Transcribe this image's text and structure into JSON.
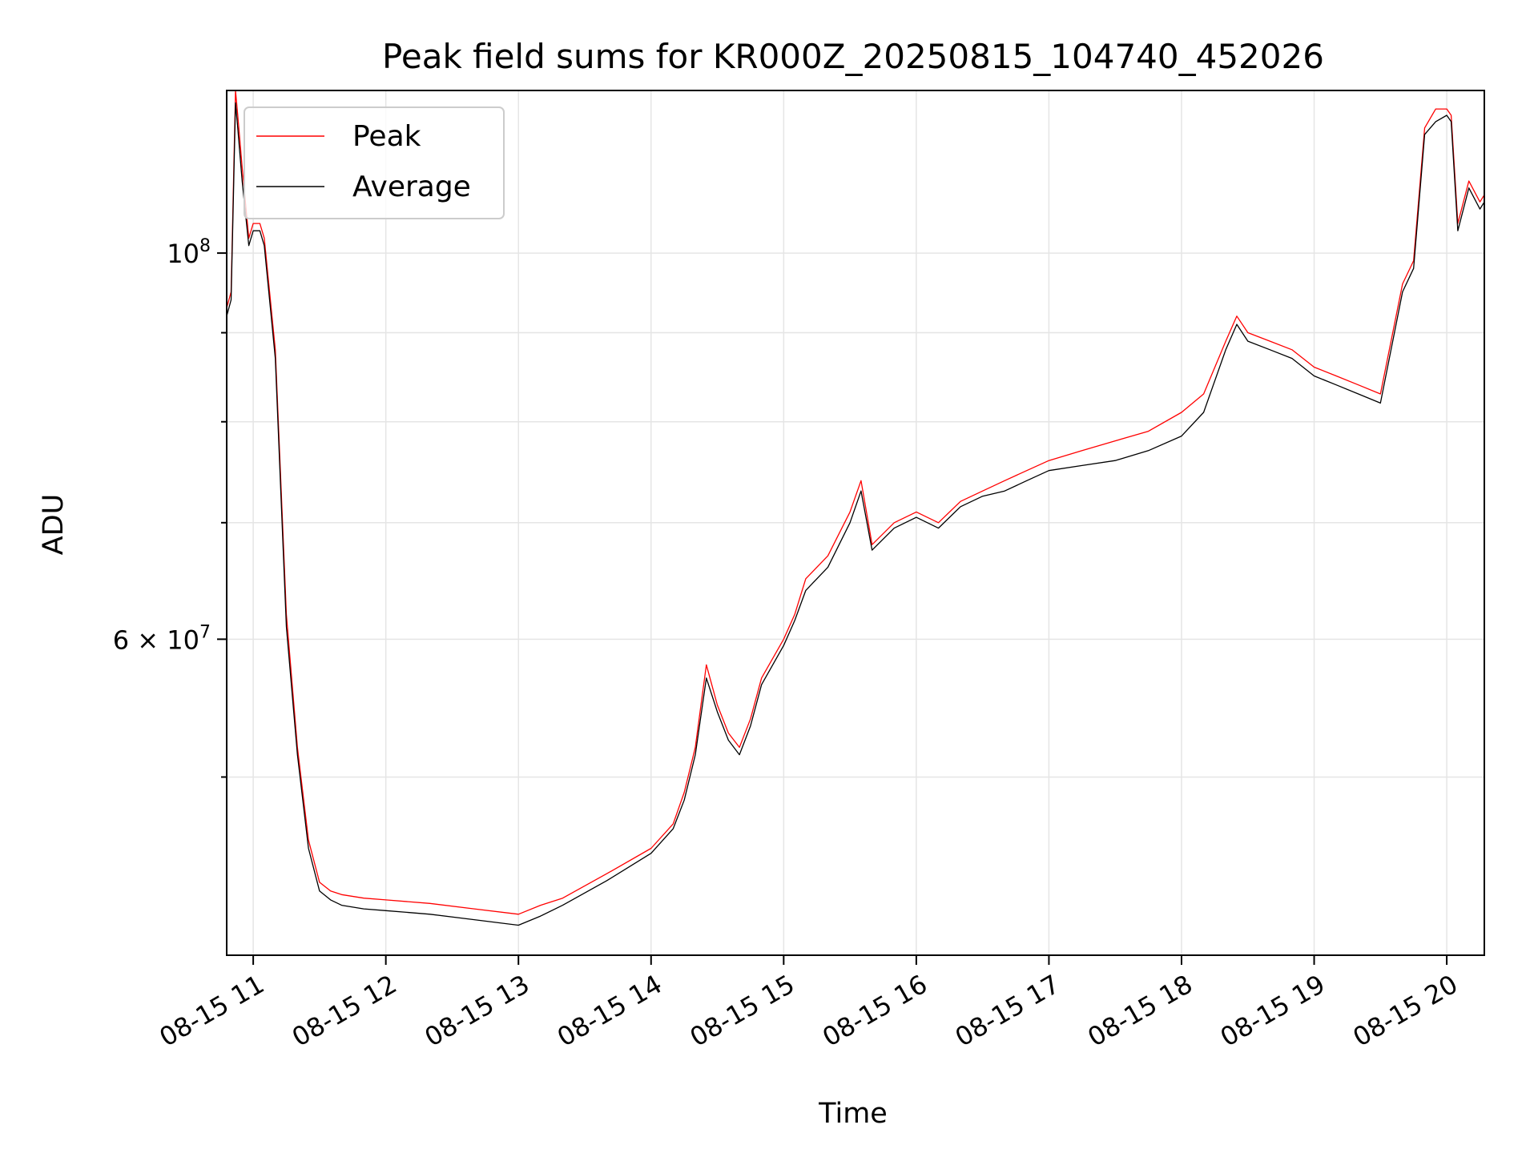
{
  "chart_data": {
    "type": "line",
    "title": "Peak field sums for KR000Z_20250815_104740_452026",
    "xlabel": "Time",
    "ylabel": "ADU",
    "xlim": [
      "2025-08-15T10:48",
      "2025-08-15T20:17"
    ],
    "ylim": [
      39500000,
      124000000
    ],
    "y_scale": "log",
    "grid": true,
    "legend_position": "top-left",
    "x_ticks": [
      {
        "time": "2025-08-15T11:00",
        "label": "08-15 11"
      },
      {
        "time": "2025-08-15T12:00",
        "label": "08-15 12"
      },
      {
        "time": "2025-08-15T13:00",
        "label": "08-15 13"
      },
      {
        "time": "2025-08-15T14:00",
        "label": "08-15 14"
      },
      {
        "time": "2025-08-15T15:00",
        "label": "08-15 15"
      },
      {
        "time": "2025-08-15T16:00",
        "label": "08-15 16"
      },
      {
        "time": "2025-08-15T17:00",
        "label": "08-15 17"
      },
      {
        "time": "2025-08-15T18:00",
        "label": "08-15 18"
      },
      {
        "time": "2025-08-15T19:00",
        "label": "08-15 19"
      },
      {
        "time": "2025-08-15T20:00",
        "label": "08-15 20"
      }
    ],
    "y_major_ticks": [
      {
        "value": 100000000,
        "mantissa": "10",
        "exponent": "8"
      },
      {
        "value": 60000000,
        "mantissa": "6 × 10",
        "exponent": "7"
      }
    ],
    "y_minor_gridlines": [
      50000000,
      70000000,
      80000000,
      90000000
    ],
    "series": [
      {
        "name": "Peak",
        "color": "#ff0000",
        "x": [
          "2025-08-15T10:48",
          "2025-08-15T10:50",
          "2025-08-15T10:52",
          "2025-08-15T10:53",
          "2025-08-15T10:55",
          "2025-08-15T10:58",
          "2025-08-15T11:00",
          "2025-08-15T11:03",
          "2025-08-15T11:05",
          "2025-08-15T11:10",
          "2025-08-15T11:15",
          "2025-08-15T11:20",
          "2025-08-15T11:25",
          "2025-08-15T11:30",
          "2025-08-15T11:35",
          "2025-08-15T11:40",
          "2025-08-15T11:50",
          "2025-08-15T12:00",
          "2025-08-15T12:20",
          "2025-08-15T12:40",
          "2025-08-15T13:00",
          "2025-08-15T13:10",
          "2025-08-15T13:20",
          "2025-08-15T13:40",
          "2025-08-15T14:00",
          "2025-08-15T14:10",
          "2025-08-15T14:15",
          "2025-08-15T14:20",
          "2025-08-15T14:25",
          "2025-08-15T14:30",
          "2025-08-15T14:35",
          "2025-08-15T14:40",
          "2025-08-15T14:45",
          "2025-08-15T14:50",
          "2025-08-15T15:00",
          "2025-08-15T15:05",
          "2025-08-15T15:10",
          "2025-08-15T15:20",
          "2025-08-15T15:30",
          "2025-08-15T15:35",
          "2025-08-15T15:40",
          "2025-08-15T15:50",
          "2025-08-15T16:00",
          "2025-08-15T16:10",
          "2025-08-15T16:20",
          "2025-08-15T16:30",
          "2025-08-15T16:40",
          "2025-08-15T16:50",
          "2025-08-15T17:00",
          "2025-08-15T17:15",
          "2025-08-15T17:30",
          "2025-08-15T17:45",
          "2025-08-15T18:00",
          "2025-08-15T18:10",
          "2025-08-15T18:20",
          "2025-08-15T18:25",
          "2025-08-15T18:30",
          "2025-08-15T18:40",
          "2025-08-15T18:50",
          "2025-08-15T19:00",
          "2025-08-15T19:10",
          "2025-08-15T19:20",
          "2025-08-15T19:30",
          "2025-08-15T19:40",
          "2025-08-15T19:45",
          "2025-08-15T19:50",
          "2025-08-15T19:55",
          "2025-08-15T20:00",
          "2025-08-15T20:02",
          "2025-08-15T20:05",
          "2025-08-15T20:10",
          "2025-08-15T20:15",
          "2025-08-15T20:17"
        ],
        "y": [
          93000000,
          95000000,
          124000000,
          120000000,
          112000000,
          102000000,
          104000000,
          104000000,
          102000000,
          88000000,
          62000000,
          52000000,
          46000000,
          43500000,
          43000000,
          42800000,
          42600000,
          42500000,
          42300000,
          42000000,
          41700000,
          42200000,
          42600000,
          44000000,
          45500000,
          47000000,
          49000000,
          52000000,
          58000000,
          55000000,
          53000000,
          52000000,
          54000000,
          57000000,
          60000000,
          62000000,
          65000000,
          67000000,
          71000000,
          74000000,
          68000000,
          70000000,
          71000000,
          70000000,
          72000000,
          73000000,
          74000000,
          75000000,
          76000000,
          77000000,
          78000000,
          79000000,
          81000000,
          83000000,
          89000000,
          92000000,
          90000000,
          89000000,
          88000000,
          86000000,
          85000000,
          84000000,
          83000000,
          96000000,
          99000000,
          118000000,
          121000000,
          121000000,
          120000000,
          104000000,
          110000000,
          107000000,
          108000000
        ]
      },
      {
        "name": "Average",
        "color": "#000000",
        "x": [
          "2025-08-15T10:48",
          "2025-08-15T10:50",
          "2025-08-15T10:52",
          "2025-08-15T10:53",
          "2025-08-15T10:55",
          "2025-08-15T10:58",
          "2025-08-15T11:00",
          "2025-08-15T11:03",
          "2025-08-15T11:05",
          "2025-08-15T11:10",
          "2025-08-15T11:15",
          "2025-08-15T11:20",
          "2025-08-15T11:25",
          "2025-08-15T11:30",
          "2025-08-15T11:35",
          "2025-08-15T11:40",
          "2025-08-15T11:50",
          "2025-08-15T12:00",
          "2025-08-15T12:20",
          "2025-08-15T12:40",
          "2025-08-15T13:00",
          "2025-08-15T13:10",
          "2025-08-15T13:20",
          "2025-08-15T13:40",
          "2025-08-15T14:00",
          "2025-08-15T14:10",
          "2025-08-15T14:15",
          "2025-08-15T14:20",
          "2025-08-15T14:25",
          "2025-08-15T14:30",
          "2025-08-15T14:35",
          "2025-08-15T14:40",
          "2025-08-15T14:45",
          "2025-08-15T14:50",
          "2025-08-15T15:00",
          "2025-08-15T15:05",
          "2025-08-15T15:10",
          "2025-08-15T15:20",
          "2025-08-15T15:30",
          "2025-08-15T15:35",
          "2025-08-15T15:40",
          "2025-08-15T15:50",
          "2025-08-15T16:00",
          "2025-08-15T16:10",
          "2025-08-15T16:20",
          "2025-08-15T16:30",
          "2025-08-15T16:40",
          "2025-08-15T16:50",
          "2025-08-15T17:00",
          "2025-08-15T17:15",
          "2025-08-15T17:30",
          "2025-08-15T17:45",
          "2025-08-15T18:00",
          "2025-08-15T18:10",
          "2025-08-15T18:20",
          "2025-08-15T18:25",
          "2025-08-15T18:30",
          "2025-08-15T18:40",
          "2025-08-15T18:50",
          "2025-08-15T19:00",
          "2025-08-15T19:10",
          "2025-08-15T19:20",
          "2025-08-15T19:30",
          "2025-08-15T19:40",
          "2025-08-15T19:45",
          "2025-08-15T19:50",
          "2025-08-15T19:55",
          "2025-08-15T20:00",
          "2025-08-15T20:02",
          "2025-08-15T20:05",
          "2025-08-15T20:10",
          "2025-08-15T20:15",
          "2025-08-15T20:17"
        ],
        "y": [
          92000000,
          94000000,
          122000000,
          118000000,
          110000000,
          101000000,
          103000000,
          103000000,
          101000000,
          87000000,
          61000000,
          51500000,
          45500000,
          43000000,
          42500000,
          42200000,
          42000000,
          41900000,
          41700000,
          41400000,
          41100000,
          41600000,
          42200000,
          43600000,
          45200000,
          46700000,
          48500000,
          51500000,
          57000000,
          54500000,
          52500000,
          51500000,
          53500000,
          56500000,
          59500000,
          61500000,
          64000000,
          66000000,
          70000000,
          73000000,
          67500000,
          69500000,
          70500000,
          69500000,
          71500000,
          72500000,
          73000000,
          74000000,
          75000000,
          75500000,
          76000000,
          77000000,
          78500000,
          81000000,
          88000000,
          91000000,
          89000000,
          88000000,
          87000000,
          85000000,
          84000000,
          83000000,
          82000000,
          95000000,
          98000000,
          117000000,
          119000000,
          120000000,
          119000000,
          103000000,
          109000000,
          106000000,
          107000000
        ]
      }
    ]
  }
}
